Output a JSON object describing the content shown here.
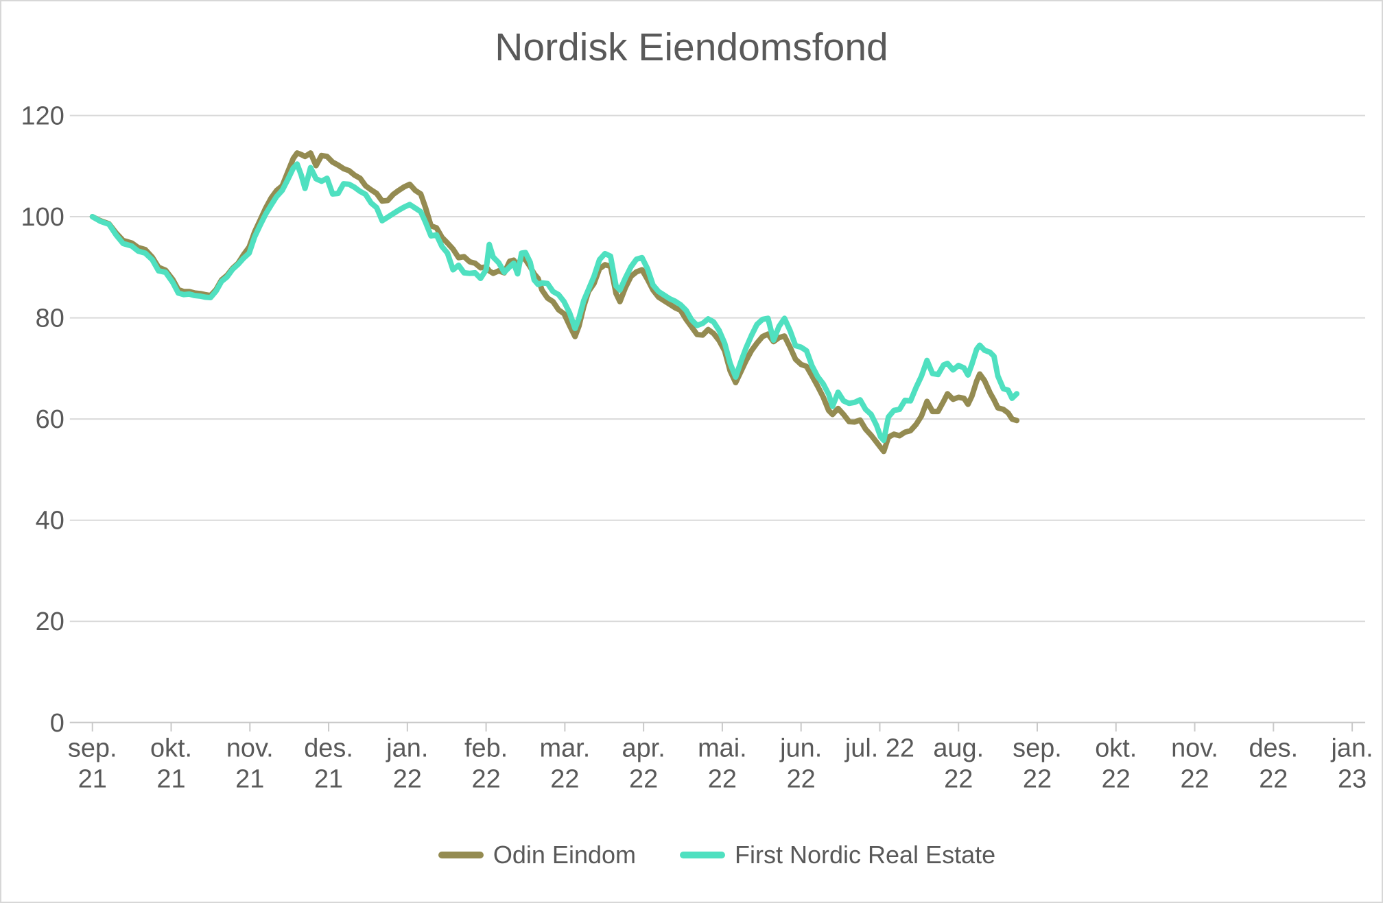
{
  "title": "Nordisk Eiendomsfond",
  "colors": {
    "odin_line": "#948B51",
    "first_nordic_line": "#4FE0C0",
    "gridline": "#D9D9D9",
    "axis": "#C9C9C9",
    "text": "#595959",
    "frame_border": "#D7D7D7",
    "background": "#FFFFFF"
  },
  "legend": {
    "items": [
      {
        "label": "Odin Eindom",
        "color": "#948B51"
      },
      {
        "label": "First Nordic Real Estate",
        "color": "#4FE0C0"
      }
    ]
  },
  "chart_data": {
    "type": "line",
    "title": "Nordisk Eiendomsfond",
    "xlabel": "",
    "ylabel": "",
    "ylim": [
      0,
      120
    ],
    "grid": "horizontal",
    "legend_position": "bottom-center",
    "y_ticks": [
      0,
      20,
      40,
      60,
      80,
      100,
      120
    ],
    "x_tick_labels": [
      {
        "line1": "sep.",
        "line2": "21"
      },
      {
        "line1": "okt.",
        "line2": "21"
      },
      {
        "line1": "nov.",
        "line2": "21"
      },
      {
        "line1": "des.",
        "line2": "21"
      },
      {
        "line1": "jan.",
        "line2": "22"
      },
      {
        "line1": "feb.",
        "line2": "22"
      },
      {
        "line1": "mar.",
        "line2": "22"
      },
      {
        "line1": "apr.",
        "line2": "22"
      },
      {
        "line1": "mai.",
        "line2": "22"
      },
      {
        "line1": "jun.",
        "line2": "22"
      },
      {
        "line1": "jul. 22",
        "line2": ""
      },
      {
        "line1": "aug.",
        "line2": "22"
      },
      {
        "line1": "sep.",
        "line2": "22"
      },
      {
        "line1": "okt.",
        "line2": "22"
      },
      {
        "line1": "nov.",
        "line2": "22"
      },
      {
        "line1": "des.",
        "line2": "22"
      },
      {
        "line1": "jan.",
        "line2": "23"
      }
    ],
    "x_unit": "months since sep. 2021 (0 = sep. 21 tick)",
    "series": [
      {
        "name": "Odin Eindom",
        "color": "#948B51"
      },
      {
        "name": "First Nordic Real Estate",
        "color": "#4FE0C0"
      }
    ],
    "points_format": [
      "x_month",
      "Odin Eindom",
      "First Nordic Real Estate"
    ],
    "points": [
      [
        0.0,
        100.0,
        100.0
      ],
      [
        0.1,
        99.2,
        99.1
      ],
      [
        0.21,
        98.6,
        98.5
      ],
      [
        0.3,
        96.8,
        96.4
      ],
      [
        0.39,
        95.3,
        94.7
      ],
      [
        0.5,
        94.8,
        94.2
      ],
      [
        0.58,
        93.9,
        93.2
      ],
      [
        0.67,
        93.5,
        92.8
      ],
      [
        0.76,
        92.0,
        91.5
      ],
      [
        0.84,
        90.0,
        89.3
      ],
      [
        0.93,
        89.4,
        89.0
      ],
      [
        1.02,
        87.6,
        87.0
      ],
      [
        1.09,
        85.6,
        84.9
      ],
      [
        1.16,
        85.2,
        84.6
      ],
      [
        1.23,
        85.2,
        84.7
      ],
      [
        1.3,
        84.9,
        84.4
      ],
      [
        1.37,
        84.8,
        84.3
      ],
      [
        1.43,
        84.6,
        84.1
      ],
      [
        1.5,
        84.4,
        84.0
      ],
      [
        1.57,
        85.6,
        85.3
      ],
      [
        1.64,
        87.5,
        87.2
      ],
      [
        1.71,
        88.4,
        88.1
      ],
      [
        1.78,
        89.8,
        89.6
      ],
      [
        1.85,
        90.8,
        90.6
      ],
      [
        1.92,
        92.5,
        91.8
      ],
      [
        1.99,
        94.0,
        92.8
      ],
      [
        2.06,
        97.0,
        96.0
      ],
      [
        2.13,
        99.3,
        98.3
      ],
      [
        2.2,
        101.7,
        100.5
      ],
      [
        2.27,
        103.7,
        102.3
      ],
      [
        2.34,
        105.2,
        104.0
      ],
      [
        2.41,
        106.1,
        105.2
      ],
      [
        2.48,
        108.8,
        107.3
      ],
      [
        2.55,
        111.5,
        109.6
      ],
      [
        2.6,
        112.6,
        110.4
      ],
      [
        2.65,
        112.3,
        108.3
      ],
      [
        2.7,
        111.9,
        105.6
      ],
      [
        2.77,
        112.6,
        109.7
      ],
      [
        2.84,
        110.1,
        107.5
      ],
      [
        2.91,
        112.1,
        107.0
      ],
      [
        2.98,
        111.9,
        107.6
      ],
      [
        3.05,
        110.8,
        104.5
      ],
      [
        3.12,
        110.2,
        104.6
      ],
      [
        3.19,
        109.5,
        106.5
      ],
      [
        3.26,
        109.1,
        106.4
      ],
      [
        3.33,
        108.2,
        105.8
      ],
      [
        3.4,
        107.6,
        105.0
      ],
      [
        3.47,
        106.1,
        104.4
      ],
      [
        3.54,
        105.3,
        102.7
      ],
      [
        3.61,
        104.6,
        101.8
      ],
      [
        3.68,
        103.1,
        99.2
      ],
      [
        3.75,
        103.2,
        99.9
      ],
      [
        3.82,
        104.4,
        100.6
      ],
      [
        3.89,
        105.2,
        101.3
      ],
      [
        3.96,
        105.9,
        101.9
      ],
      [
        4.03,
        106.4,
        102.4
      ],
      [
        4.1,
        105.2,
        101.7
      ],
      [
        4.17,
        104.5,
        101.0
      ],
      [
        4.23,
        101.8,
        98.9
      ],
      [
        4.3,
        98.2,
        96.2
      ],
      [
        4.37,
        97.8,
        96.4
      ],
      [
        4.44,
        95.9,
        94.1
      ],
      [
        4.51,
        94.8,
        92.8
      ],
      [
        4.58,
        93.6,
        89.5
      ],
      [
        4.65,
        91.9,
        90.4
      ],
      [
        4.72,
        92.1,
        88.9
      ],
      [
        4.79,
        91.1,
        88.8
      ],
      [
        4.86,
        90.8,
        88.9
      ],
      [
        4.93,
        89.9,
        87.8
      ],
      [
        5.0,
        90.1,
        89.5
      ],
      [
        5.04,
        89.3,
        94.5
      ],
      [
        5.09,
        88.8,
        92.0
      ],
      [
        5.16,
        89.3,
        90.9
      ],
      [
        5.23,
        88.9,
        89.0
      ],
      [
        5.3,
        91.2,
        90.1
      ],
      [
        5.35,
        91.4,
        90.8
      ],
      [
        5.4,
        90.4,
        88.7
      ],
      [
        5.45,
        91.9,
        92.8
      ],
      [
        5.5,
        91.5,
        92.9
      ],
      [
        5.56,
        90.1,
        91.0
      ],
      [
        5.61,
        88.7,
        87.5
      ],
      [
        5.66,
        87.8,
        86.6
      ],
      [
        5.71,
        85.5,
        86.9
      ],
      [
        5.78,
        83.9,
        86.8
      ],
      [
        5.85,
        83.2,
        85.2
      ],
      [
        5.92,
        81.6,
        84.6
      ],
      [
        5.99,
        80.8,
        83.2
      ],
      [
        6.06,
        78.5,
        81.0
      ],
      [
        6.13,
        76.3,
        77.9
      ],
      [
        6.18,
        78.4,
        80.0
      ],
      [
        6.24,
        82.2,
        83.4
      ],
      [
        6.3,
        85.2,
        85.6
      ],
      [
        6.37,
        86.8,
        88.2
      ],
      [
        6.44,
        89.7,
        91.5
      ],
      [
        6.51,
        90.5,
        92.7
      ],
      [
        6.58,
        90.2,
        92.2
      ],
      [
        6.65,
        84.8,
        86.3
      ],
      [
        6.7,
        83.2,
        85.5
      ],
      [
        6.77,
        86.0,
        87.9
      ],
      [
        6.84,
        88.2,
        90.1
      ],
      [
        6.91,
        89.1,
        91.6
      ],
      [
        6.98,
        89.5,
        91.9
      ],
      [
        7.05,
        87.6,
        89.7
      ],
      [
        7.12,
        85.5,
        86.5
      ],
      [
        7.19,
        84.1,
        85.2
      ],
      [
        7.26,
        83.4,
        84.5
      ],
      [
        7.33,
        82.7,
        83.8
      ],
      [
        7.4,
        82.0,
        83.3
      ],
      [
        7.47,
        81.5,
        82.6
      ],
      [
        7.54,
        79.7,
        81.5
      ],
      [
        7.61,
        78.2,
        79.6
      ],
      [
        7.68,
        76.7,
        78.5
      ],
      [
        7.75,
        76.6,
        78.9
      ],
      [
        7.82,
        77.7,
        79.8
      ],
      [
        7.89,
        76.9,
        79.2
      ],
      [
        7.96,
        75.5,
        77.5
      ],
      [
        8.03,
        73.5,
        75.0
      ],
      [
        8.1,
        69.5,
        71.0
      ],
      [
        8.17,
        67.2,
        68.3
      ],
      [
        8.24,
        69.5,
        71.5
      ],
      [
        8.3,
        71.5,
        74.0
      ],
      [
        8.37,
        73.5,
        76.5
      ],
      [
        8.44,
        75.0,
        78.7
      ],
      [
        8.51,
        76.3,
        79.7
      ],
      [
        8.58,
        76.8,
        79.9
      ],
      [
        8.65,
        75.3,
        75.6
      ],
      [
        8.72,
        76.1,
        78.3
      ],
      [
        8.79,
        76.4,
        79.9
      ],
      [
        8.86,
        74.2,
        77.5
      ],
      [
        8.93,
        71.8,
        74.5
      ],
      [
        9.0,
        70.8,
        74.2
      ],
      [
        9.07,
        70.4,
        73.5
      ],
      [
        9.14,
        68.5,
        70.5
      ],
      [
        9.21,
        66.5,
        68.4
      ],
      [
        9.28,
        64.4,
        67.0
      ],
      [
        9.35,
        61.7,
        64.9
      ],
      [
        9.4,
        60.9,
        62.5
      ],
      [
        9.47,
        62.1,
        65.3
      ],
      [
        9.54,
        60.9,
        63.6
      ],
      [
        9.61,
        59.5,
        63.1
      ],
      [
        9.68,
        59.4,
        63.3
      ],
      [
        9.75,
        59.8,
        63.8
      ],
      [
        9.82,
        58.0,
        61.9
      ],
      [
        9.89,
        56.8,
        60.9
      ],
      [
        9.96,
        55.4,
        58.7
      ],
      [
        10.01,
        54.4,
        56.5
      ],
      [
        10.05,
        53.6,
        55.8
      ],
      [
        10.11,
        56.4,
        60.4
      ],
      [
        10.18,
        57.0,
        61.7
      ],
      [
        10.25,
        56.7,
        61.9
      ],
      [
        10.32,
        57.4,
        63.7
      ],
      [
        10.39,
        57.7,
        63.6
      ],
      [
        10.46,
        58.9,
        66.2
      ],
      [
        10.53,
        60.6,
        68.5
      ],
      [
        10.6,
        63.5,
        71.6
      ],
      [
        10.67,
        61.5,
        69.0
      ],
      [
        10.74,
        61.5,
        68.8
      ],
      [
        10.81,
        63.5,
        70.7
      ],
      [
        10.86,
        65.0,
        71.0
      ],
      [
        10.93,
        63.9,
        69.7
      ],
      [
        11.0,
        64.3,
        70.6
      ],
      [
        11.07,
        64.1,
        70.1
      ],
      [
        11.12,
        62.9,
        68.7
      ],
      [
        11.17,
        64.5,
        70.8
      ],
      [
        11.23,
        67.5,
        73.8
      ],
      [
        11.27,
        68.9,
        74.6
      ],
      [
        11.33,
        67.6,
        73.6
      ],
      [
        11.4,
        65.2,
        73.2
      ],
      [
        11.45,
        63.8,
        72.4
      ],
      [
        11.5,
        62.2,
        68.5
      ],
      [
        11.57,
        61.9,
        66.0
      ],
      [
        11.63,
        61.2,
        65.7
      ],
      [
        11.68,
        60.0,
        64.1
      ],
      [
        11.74,
        59.7,
        65.0
      ]
    ]
  }
}
